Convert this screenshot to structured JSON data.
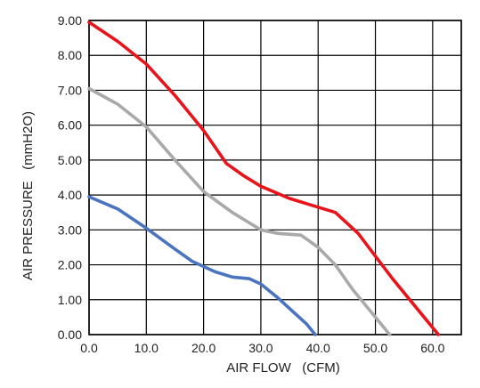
{
  "chart_data": {
    "type": "line",
    "xlabel": "AIR FLOW   (CFM)",
    "ylabel": "AIR PRESSURE   (mmH2O)",
    "xlim": [
      0,
      65
    ],
    "ylim": [
      0,
      9
    ],
    "x_ticks": [
      "0.0",
      "10.0",
      "20.0",
      "30.0",
      "40.0",
      "50.0",
      "60.0"
    ],
    "y_ticks": [
      "0.00",
      "1.00",
      "2.00",
      "3.00",
      "4.00",
      "5.00",
      "6.00",
      "7.00",
      "8.00",
      "9.00"
    ],
    "grid": true,
    "series": [
      {
        "color": "#e8131b",
        "points": [
          [
            0,
            8.95
          ],
          [
            5,
            8.4
          ],
          [
            10,
            7.75
          ],
          [
            15,
            6.85
          ],
          [
            20,
            5.85
          ],
          [
            24,
            4.9
          ],
          [
            27,
            4.55
          ],
          [
            30,
            4.25
          ],
          [
            35,
            3.9
          ],
          [
            40,
            3.65
          ],
          [
            43,
            3.5
          ],
          [
            47,
            2.9
          ],
          [
            50,
            2.25
          ],
          [
            53,
            1.6
          ],
          [
            56,
            1.0
          ],
          [
            59,
            0.4
          ],
          [
            61,
            0.0
          ]
        ]
      },
      {
        "color": "#a9a9a9",
        "points": [
          [
            0,
            7.05
          ],
          [
            5,
            6.6
          ],
          [
            10,
            5.95
          ],
          [
            15,
            5.0
          ],
          [
            20,
            4.1
          ],
          [
            25,
            3.5
          ],
          [
            30,
            3.0
          ],
          [
            33,
            2.9
          ],
          [
            37,
            2.85
          ],
          [
            40,
            2.5
          ],
          [
            43,
            2.0
          ],
          [
            46,
            1.3
          ],
          [
            50,
            0.5
          ],
          [
            52.5,
            0.0
          ]
        ]
      },
      {
        "color": "#4a74c0",
        "points": [
          [
            0,
            3.95
          ],
          [
            5,
            3.6
          ],
          [
            10,
            3.05
          ],
          [
            15,
            2.45
          ],
          [
            18,
            2.1
          ],
          [
            22,
            1.8
          ],
          [
            25,
            1.65
          ],
          [
            28,
            1.6
          ],
          [
            30,
            1.45
          ],
          [
            33,
            1.05
          ],
          [
            36,
            0.6
          ],
          [
            38,
            0.3
          ],
          [
            39.5,
            0.0
          ]
        ]
      }
    ]
  }
}
